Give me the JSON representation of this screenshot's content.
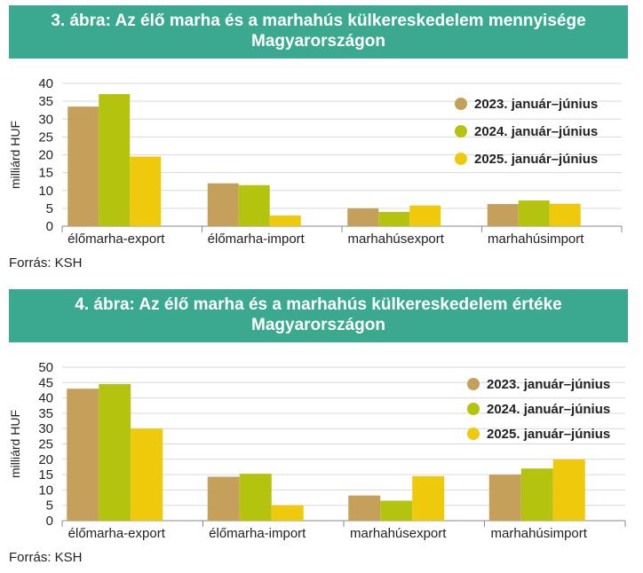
{
  "chart_data": [
    {
      "type": "bar",
      "title": "3. ábra: Az élő marha és a marhahús külkereskedelem mennyisége Magyarországon",
      "ylabel": "milliárd HUF",
      "xlabel": "",
      "ylim": [
        0,
        40
      ],
      "yticks": [
        0,
        5,
        10,
        15,
        20,
        25,
        30,
        35,
        40
      ],
      "grid": true,
      "legend_position": "top-right",
      "categories": [
        "élőmarha-export",
        "élőmarha-import",
        "marhahúsexport",
        "marhahúsimport"
      ],
      "series": [
        {
          "name": "2023. január–június",
          "color": "#c4a05a",
          "values": [
            33.5,
            12,
            5,
            6.2
          ]
        },
        {
          "name": "2024. január–június",
          "color": "#b4c40e",
          "values": [
            37,
            11.5,
            4,
            7.2
          ]
        },
        {
          "name": "2025. január–június",
          "color": "#eec90c",
          "values": [
            19.5,
            3,
            5.8,
            6.3
          ]
        }
      ],
      "source": "Forrás: KSH"
    },
    {
      "type": "bar",
      "title": "4. ábra: Az élő marha és a marhahús külkereskedelem értéke Magyarországon",
      "ylabel": "milliárd HUF",
      "xlabel": "",
      "ylim": [
        0,
        50
      ],
      "yticks": [
        0,
        5,
        10,
        15,
        20,
        25,
        30,
        35,
        40,
        45,
        50
      ],
      "grid": true,
      "legend_position": "top-right",
      "categories": [
        "élőmarha-export",
        "élőmarha-import",
        "marhahúsexport",
        "marhahúsimport"
      ],
      "series": [
        {
          "name": "2023. január–június",
          "color": "#c4a05a",
          "values": [
            43,
            14.3,
            8.2,
            15
          ]
        },
        {
          "name": "2024. január–június",
          "color": "#b4c40e",
          "values": [
            44.5,
            15.3,
            6.5,
            17
          ]
        },
        {
          "name": "2025. január–június",
          "color": "#eec90c",
          "values": [
            30,
            5,
            14.5,
            20
          ]
        }
      ],
      "source": "Forrás: KSH"
    }
  ]
}
